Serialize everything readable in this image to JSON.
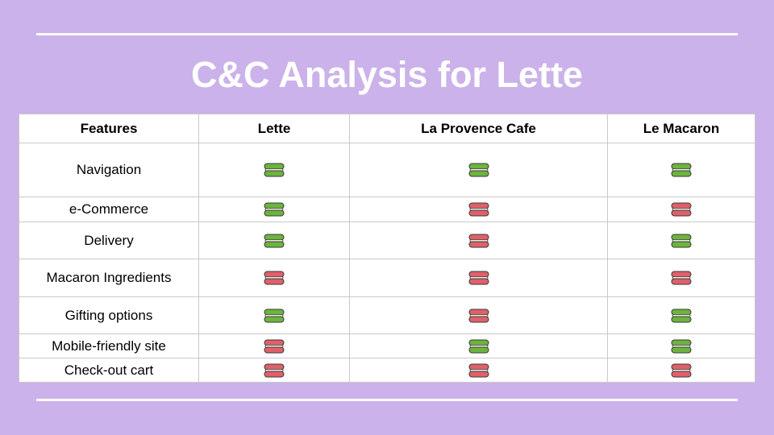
{
  "slide": {
    "title": "C&C Analysis for Lette"
  },
  "table": {
    "headers": [
      "Features",
      "Lette",
      "La Provence Cafe",
      "Le Macaron"
    ],
    "colors": {
      "yes": "#6cb43c",
      "no": "#e0606a"
    },
    "rows": [
      {
        "feature": "Navigation",
        "marks": [
          "yes",
          "yes",
          "yes"
        ]
      },
      {
        "feature": "e-Commerce",
        "marks": [
          "yes",
          "no",
          "no"
        ]
      },
      {
        "feature": "Delivery",
        "marks": [
          "yes",
          "no",
          "yes"
        ]
      },
      {
        "feature": "Macaron Ingredients",
        "marks": [
          "no",
          "no",
          "no"
        ]
      },
      {
        "feature": "Gifting options",
        "marks": [
          "yes",
          "no",
          "yes"
        ]
      },
      {
        "feature": "Mobile-friendly site",
        "marks": [
          "no",
          "yes",
          "yes"
        ]
      },
      {
        "feature": "Check-out cart",
        "marks": [
          "no",
          "no",
          "no"
        ]
      }
    ]
  }
}
